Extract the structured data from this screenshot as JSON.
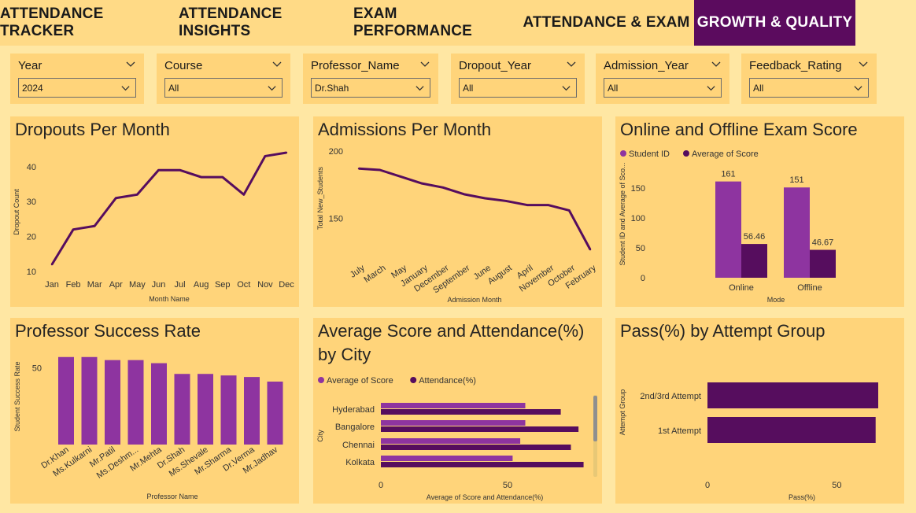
{
  "tabs": [
    {
      "label": "ATTENDANCE TRACKER",
      "active": false
    },
    {
      "label": "ATTENDANCE INSIGHTS",
      "active": false
    },
    {
      "label": "EXAM PERFORMANCE",
      "active": false
    },
    {
      "label": "ATTENDANCE & EXAM",
      "active": false
    },
    {
      "label": "GROWTH & QUALITY",
      "active": true
    }
  ],
  "filters": [
    {
      "title": "Year",
      "value": "2024"
    },
    {
      "title": "Course",
      "value": "All"
    },
    {
      "title": "Professor_Name",
      "value": "Dr.Shah"
    },
    {
      "title": "Dropout_Year",
      "value": "All"
    },
    {
      "title": "Admission_Year",
      "value": "All"
    },
    {
      "title": "Feedback_Rating",
      "value": "All"
    }
  ],
  "colors": {
    "accent": "#5B0B5E",
    "purple_light": "#8E34A0",
    "purple_dark": "#560D5E",
    "card": "#FFD47A",
    "background": "#FFE7A3"
  },
  "chart_data": [
    {
      "id": "dropouts",
      "type": "line",
      "title": "Dropouts Per Month",
      "xlabel": "Month Name",
      "ylabel": "Dropout Count",
      "categories": [
        "Jan",
        "Feb",
        "Mar",
        "Apr",
        "May",
        "Jun",
        "Jul",
        "Aug",
        "Sep",
        "Oct",
        "Nov",
        "Dec"
      ],
      "values": [
        12,
        22,
        23,
        31,
        32,
        39,
        39,
        37,
        37,
        32,
        43,
        44
      ],
      "yticks": [
        "10",
        "20",
        "30",
        "40"
      ],
      "ylim": [
        10,
        44
      ]
    },
    {
      "id": "admissions",
      "type": "line",
      "title": "Admissions Per Month",
      "xlabel": "Admission Month",
      "ylabel": "Total New_Students",
      "categories": [
        "July",
        "March",
        "May",
        "January",
        "December",
        "September",
        "June",
        "August",
        "April",
        "November",
        "October",
        "February"
      ],
      "values": [
        187,
        186,
        181,
        176,
        173,
        168,
        165,
        163,
        160,
        160,
        156,
        127
      ],
      "yticks": [
        "150",
        "200"
      ],
      "ylim": [
        130,
        200
      ]
    },
    {
      "id": "exam_mode",
      "type": "bar",
      "title": "Online and Offline Exam Score",
      "xlabel": "Mode",
      "ylabel": "Student ID and Average of Sco...",
      "categories": [
        "Online",
        "Offline"
      ],
      "series": [
        {
          "name": "Student ID",
          "values": [
            161,
            151
          ],
          "labels": [
            "161",
            "151"
          ]
        },
        {
          "name": "Average of Score",
          "values": [
            56.46,
            46.67
          ],
          "labels": [
            "56.46",
            "46.67"
          ]
        }
      ],
      "yticks": [
        "0",
        "50",
        "100",
        "150"
      ],
      "ylim": [
        0,
        175
      ]
    },
    {
      "id": "professor",
      "type": "bar",
      "title": "Professor Success Rate",
      "xlabel": "Professor Name",
      "ylabel": "Student Success Rate",
      "categories": [
        "Dr.Khan",
        "Ms.Kulkarni",
        "Mr.Patil",
        "Ms.Deshm...",
        "Mr.Mehta",
        "Dr.Shah",
        "Ms.Shevale",
        "Mr.Sharma",
        "Dr.Verma",
        "Mr.Jadhav"
      ],
      "values": [
        57,
        57,
        55,
        55,
        53,
        46,
        46,
        45,
        44,
        41
      ],
      "yticks": [
        "50"
      ],
      "ylim": [
        0,
        62
      ]
    },
    {
      "id": "city",
      "type": "bar",
      "title": "Average Score and Attendance(%) by City",
      "xlabel": "Average of Score and Attendance(%)",
      "ylabel": "City",
      "categories": [
        "Hyderabad",
        "Bangalore",
        "Chennai",
        "Kolkata"
      ],
      "series": [
        {
          "name": "Average of Score",
          "values": [
            57,
            57,
            55,
            52
          ]
        },
        {
          "name": "Attendance(%)",
          "values": [
            71,
            78,
            75,
            80
          ]
        }
      ],
      "xticks": [
        "0",
        "50"
      ],
      "xlim": [
        0,
        82
      ]
    },
    {
      "id": "attempt",
      "type": "bar",
      "title": "Pass(%) by Attempt Group",
      "xlabel": "Pass(%)",
      "ylabel": "Attempt Group",
      "categories": [
        "2nd/3rd Attempt",
        "1st Attempt"
      ],
      "values": [
        66,
        65
      ],
      "xticks": [
        "0",
        "50"
      ],
      "xlim": [
        0,
        66
      ]
    }
  ]
}
